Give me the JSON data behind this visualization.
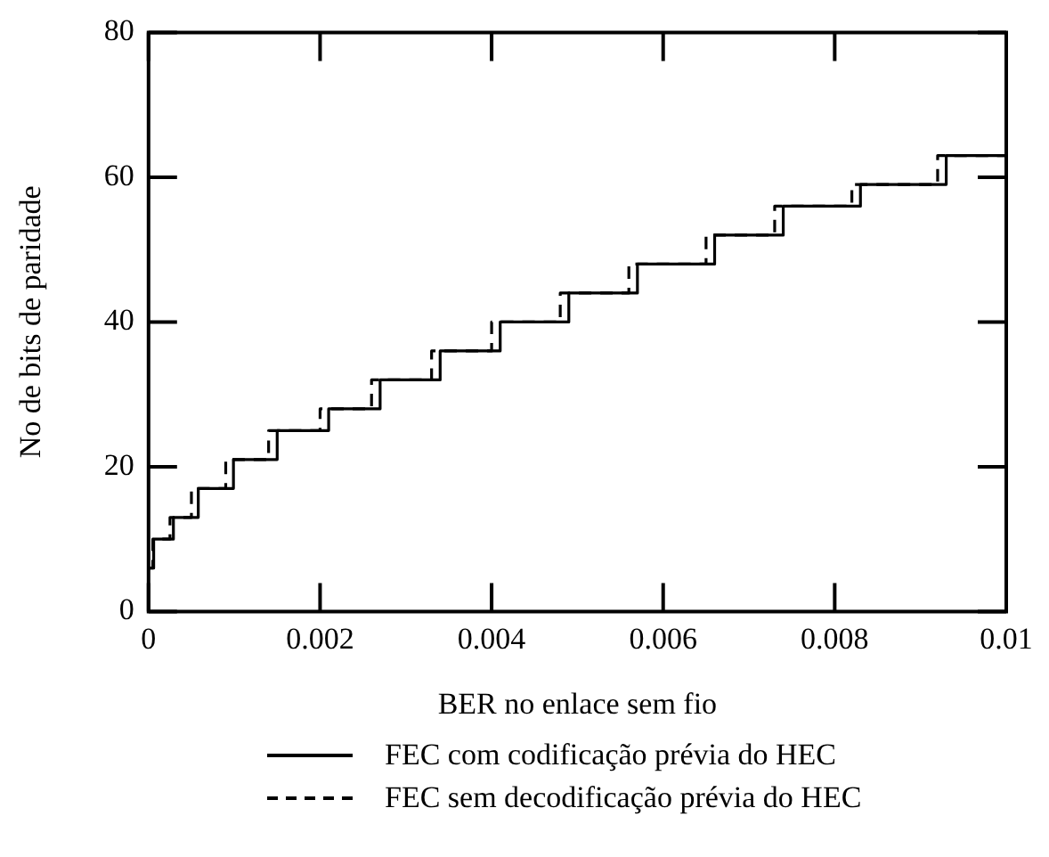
{
  "chart_data": {
    "type": "step",
    "xlabel": "BER no enlace sem fio",
    "ylabel": "No de bits de paridade",
    "xlim": [
      0,
      0.01
    ],
    "xticks": [
      0,
      0.002,
      0.004,
      0.006,
      0.008,
      0.01
    ],
    "ylim": [
      0,
      80
    ],
    "yticks": [
      0,
      20,
      40,
      60,
      80
    ],
    "grid": false,
    "legend": "bottom",
    "marker": "none",
    "series": [
      {
        "name": "FEC com codificação prévia do HEC",
        "color": "#000000",
        "line_style": "solid",
        "x": [
          0,
          6e-05,
          0.00029,
          0.00058,
          0.00099,
          0.0015,
          0.0021,
          0.0027,
          0.0034,
          0.0041,
          0.0049,
          0.0057,
          0.0066,
          0.0074,
          0.0083,
          0.0093,
          0.01
        ],
        "values": [
          6,
          10,
          13,
          17,
          21,
          25,
          28,
          32,
          36,
          40,
          44,
          48,
          52,
          56,
          59,
          63,
          63
        ]
      },
      {
        "name": "FEC sem decodificação prévia do HEC",
        "color": "#000000",
        "line_style": "dashed",
        "x": [
          0,
          5e-05,
          0.00025,
          0.0005,
          0.0009,
          0.0014,
          0.002,
          0.0026,
          0.0033,
          0.004,
          0.0048,
          0.0056,
          0.0065,
          0.0073,
          0.0082,
          0.0092,
          0.01
        ],
        "values": [
          6,
          10,
          13,
          17,
          21,
          25,
          28,
          32,
          36,
          40,
          44,
          48,
          52,
          56,
          59,
          63,
          63
        ]
      }
    ]
  }
}
